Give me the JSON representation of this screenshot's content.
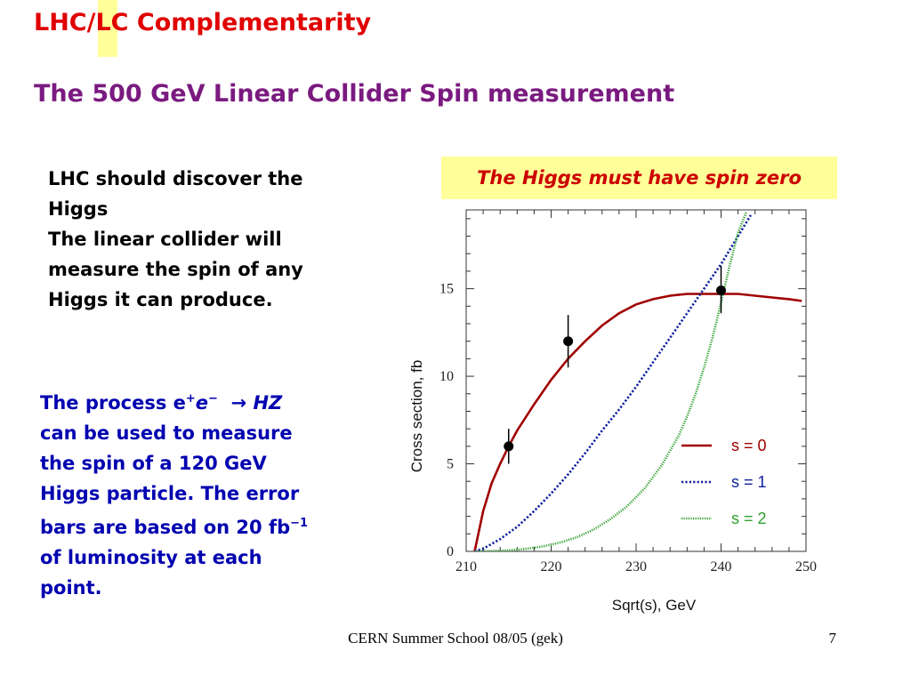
{
  "slide": {
    "title": "LHC/LC Complementarity",
    "subtitle": "The 500 GeV Linear Collider Spin measurement",
    "para1": [
      "LHC should discover the",
      "Higgs",
      "The linear collider will",
      "measure the spin of any",
      "Higgs it can produce."
    ],
    "para2": {
      "l1a": "The process e",
      "l1_sup1": "+",
      "l1b": "e",
      "l1_sup2": "−",
      "l1c": "  → ",
      "l1d": "HZ",
      "l2": "can be used to measure",
      "l3": "the spin of a 120 GeV",
      "l4": "Higgs particle.  The error",
      "l5a": "bars are based on 20 fb",
      "l5_sup": "−1",
      "l6": "of luminosity at each",
      "l7": "point."
    },
    "callout": "The Higgs must have spin zero",
    "footer": "CERN Summer School 08/05 (gek)",
    "page_number": "7"
  },
  "colors": {
    "title": "#e00000",
    "subtitle": "#7a1a80",
    "para2": "#0000b0",
    "callout_bg": "#ffff99",
    "callout_text": "#cc0000"
  },
  "chart_data": {
    "type": "line",
    "xlabel": "Sqrt(s),  GeV",
    "ylabel": "Cross section,  fb",
    "xlim": [
      210,
      250
    ],
    "ylim": [
      0,
      19.5
    ],
    "xticks": [
      210,
      220,
      230,
      240,
      250
    ],
    "yticks": [
      0,
      5,
      10,
      15
    ],
    "grid": false,
    "legend_position": "lower-right",
    "series": [
      {
        "name": "s = 0",
        "color": "#a00000",
        "style": "solid",
        "x": [
          211,
          212,
          213,
          214,
          215,
          216,
          218,
          220,
          222,
          224,
          226,
          228,
          230,
          232,
          234,
          236,
          238,
          240,
          242,
          244,
          246,
          248,
          249.5
        ],
        "y": [
          0,
          2.3,
          3.9,
          5.0,
          6.0,
          6.9,
          8.4,
          9.8,
          11.0,
          12.0,
          12.9,
          13.6,
          14.1,
          14.4,
          14.6,
          14.7,
          14.7,
          14.7,
          14.7,
          14.6,
          14.5,
          14.4,
          14.3
        ]
      },
      {
        "name": "s = 1",
        "color": "#1020a0",
        "style": "dotted",
        "x": [
          211,
          212,
          214,
          216,
          218,
          220,
          222,
          224,
          226,
          228,
          230,
          232,
          234,
          236,
          238,
          240,
          242,
          243.5
        ],
        "y": [
          0,
          0.15,
          0.7,
          1.4,
          2.3,
          3.3,
          4.4,
          5.6,
          6.9,
          8.1,
          9.4,
          10.8,
          12.2,
          13.6,
          15.0,
          16.4,
          18.0,
          19.2
        ]
      },
      {
        "name": "s = 2",
        "color": "#30a030",
        "style": "fine-dotted",
        "x": [
          211,
          213,
          215,
          217,
          219,
          221,
          223,
          225,
          227,
          229,
          231,
          233,
          235,
          236,
          237,
          238,
          239,
          240,
          241,
          242,
          243
        ],
        "y": [
          0,
          0.02,
          0.06,
          0.14,
          0.28,
          0.5,
          0.8,
          1.25,
          1.85,
          2.6,
          3.6,
          4.9,
          6.6,
          7.7,
          9.0,
          10.5,
          12.2,
          14.2,
          16.3,
          18.2,
          19.4
        ]
      }
    ],
    "points": {
      "x": [
        215,
        222,
        240
      ],
      "y": [
        6.0,
        12.0,
        14.9
      ],
      "err_low": [
        5.0,
        10.5,
        13.6
      ],
      "err_high": [
        7.0,
        13.5,
        16.3
      ]
    }
  }
}
